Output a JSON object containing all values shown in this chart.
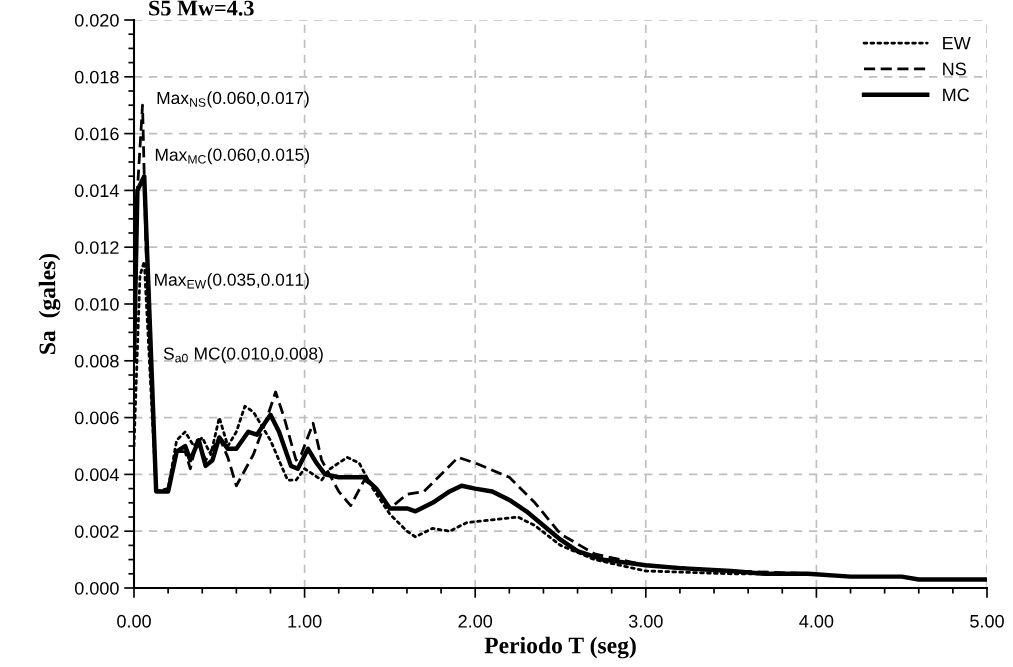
{
  "chart_data": {
    "type": "line",
    "title": "S5 Mw=4.3",
    "xlabel": "Periodo T (seg)",
    "ylabel": "Sa  (gales)",
    "xlim": [
      0,
      5
    ],
    "ylim": [
      0,
      0.02
    ],
    "xticks": [
      {
        "value": 0,
        "label": "0.00"
      },
      {
        "value": 1,
        "label": "1.00"
      },
      {
        "value": 2,
        "label": "2.00"
      },
      {
        "value": 3,
        "label": "3.00"
      },
      {
        "value": 4,
        "label": "4.00"
      },
      {
        "value": 5,
        "label": "5.00"
      }
    ],
    "yticks": [
      {
        "value": 0,
        "label": "0.000"
      },
      {
        "value": 0.002,
        "label": "0.002"
      },
      {
        "value": 0.004,
        "label": "0.004"
      },
      {
        "value": 0.006,
        "label": "0.006"
      },
      {
        "value": 0.008,
        "label": "0.008"
      },
      {
        "value": 0.01,
        "label": "0.010"
      },
      {
        "value": 0.012,
        "label": "0.012"
      },
      {
        "value": 0.014,
        "label": "0.014"
      },
      {
        "value": 0.016,
        "label": "0.016"
      },
      {
        "value": 0.018,
        "label": "0.018"
      },
      {
        "value": 0.02,
        "label": "0.020"
      }
    ],
    "grid": true,
    "legend": "top right",
    "marker": "none",
    "annotations": [
      "Max$_{NS}$(0.060,0.017)",
      "Max$_{MC}$(0.060,0.015)",
      "Max$_{EW}$(0.035,0.011)",
      "S$_{a0}$ MC(0.010,0.008)"
    ],
    "series": [
      {
        "name": "EW",
        "color": "#000000",
        "line_style": "dotted",
        "x": [
          0,
          0.035,
          0.06,
          0.13,
          0.2,
          0.25,
          0.3,
          0.35,
          0.4,
          0.45,
          0.5,
          0.55,
          0.6,
          0.65,
          0.7,
          0.8,
          0.9,
          0.95,
          1.0,
          1.1,
          1.15,
          1.25,
          1.32,
          1.4,
          1.5,
          1.6,
          1.65,
          1.75,
          1.85,
          1.95,
          2.1,
          2.25,
          2.35,
          2.5,
          2.7,
          3.0,
          3.5,
          4.0
        ],
        "values": [
          0.005,
          0.011,
          0.0115,
          0.0034,
          0.0035,
          0.0052,
          0.0055,
          0.005,
          0.0053,
          0.0047,
          0.006,
          0.005,
          0.0055,
          0.0064,
          0.0062,
          0.0052,
          0.0038,
          0.0038,
          0.0042,
          0.0038,
          0.0042,
          0.0046,
          0.0044,
          0.0035,
          0.0026,
          0.002,
          0.0018,
          0.0021,
          0.002,
          0.0023,
          0.0024,
          0.0025,
          0.0022,
          0.0015,
          0.001,
          0.0006,
          0.0005,
          0.0005
        ]
      },
      {
        "name": "NS",
        "color": "#000000",
        "line_style": "dashed",
        "x": [
          0,
          0.02,
          0.05,
          0.07,
          0.13,
          0.2,
          0.25,
          0.3,
          0.33,
          0.37,
          0.42,
          0.5,
          0.55,
          0.6,
          0.7,
          0.78,
          0.83,
          0.88,
          0.95,
          0.98,
          1.05,
          1.1,
          1.2,
          1.27,
          1.35,
          1.42,
          1.5,
          1.6,
          1.7,
          1.8,
          1.9,
          2.0,
          2.2,
          2.35,
          2.5,
          2.7,
          3.0,
          3.5,
          4.0
        ],
        "values": [
          0.012,
          0.014,
          0.017,
          0.012,
          0.0034,
          0.0034,
          0.0048,
          0.0048,
          0.0042,
          0.0052,
          0.0045,
          0.0053,
          0.0046,
          0.0036,
          0.0047,
          0.006,
          0.0069,
          0.006,
          0.0045,
          0.0047,
          0.0058,
          0.0045,
          0.0034,
          0.0029,
          0.0038,
          0.0035,
          0.0028,
          0.0033,
          0.0034,
          0.004,
          0.0046,
          0.0044,
          0.0039,
          0.003,
          0.0019,
          0.0012,
          0.0008,
          0.0006,
          0.0005
        ]
      },
      {
        "name": "MC",
        "color": "#000000",
        "line_style": "solid",
        "x": [
          0,
          0.02,
          0.06,
          0.13,
          0.2,
          0.25,
          0.3,
          0.33,
          0.38,
          0.42,
          0.46,
          0.5,
          0.55,
          0.6,
          0.67,
          0.72,
          0.8,
          0.85,
          0.92,
          0.96,
          1.02,
          1.07,
          1.12,
          1.2,
          1.3,
          1.35,
          1.42,
          1.5,
          1.6,
          1.65,
          1.75,
          1.85,
          1.92,
          2.0,
          2.1,
          2.2,
          2.3,
          2.4,
          2.5,
          2.6,
          2.75,
          3.0,
          3.2,
          3.5,
          3.7,
          3.95,
          4.2,
          4.5,
          4.6,
          5.0
        ],
        "values": [
          0.008,
          0.014,
          0.0145,
          0.0034,
          0.0034,
          0.0048,
          0.005,
          0.0045,
          0.0052,
          0.0043,
          0.0045,
          0.0053,
          0.0049,
          0.0049,
          0.0055,
          0.0054,
          0.0061,
          0.0055,
          0.0043,
          0.0042,
          0.0049,
          0.0044,
          0.004,
          0.0039,
          0.0039,
          0.0039,
          0.0035,
          0.0028,
          0.0028,
          0.0027,
          0.003,
          0.0034,
          0.0036,
          0.0035,
          0.0034,
          0.0031,
          0.0027,
          0.0022,
          0.0017,
          0.0013,
          0.001,
          0.0008,
          0.0007,
          0.0006,
          0.0005,
          0.0005,
          0.0004,
          0.0004,
          0.0003,
          0.0003
        ]
      }
    ]
  }
}
